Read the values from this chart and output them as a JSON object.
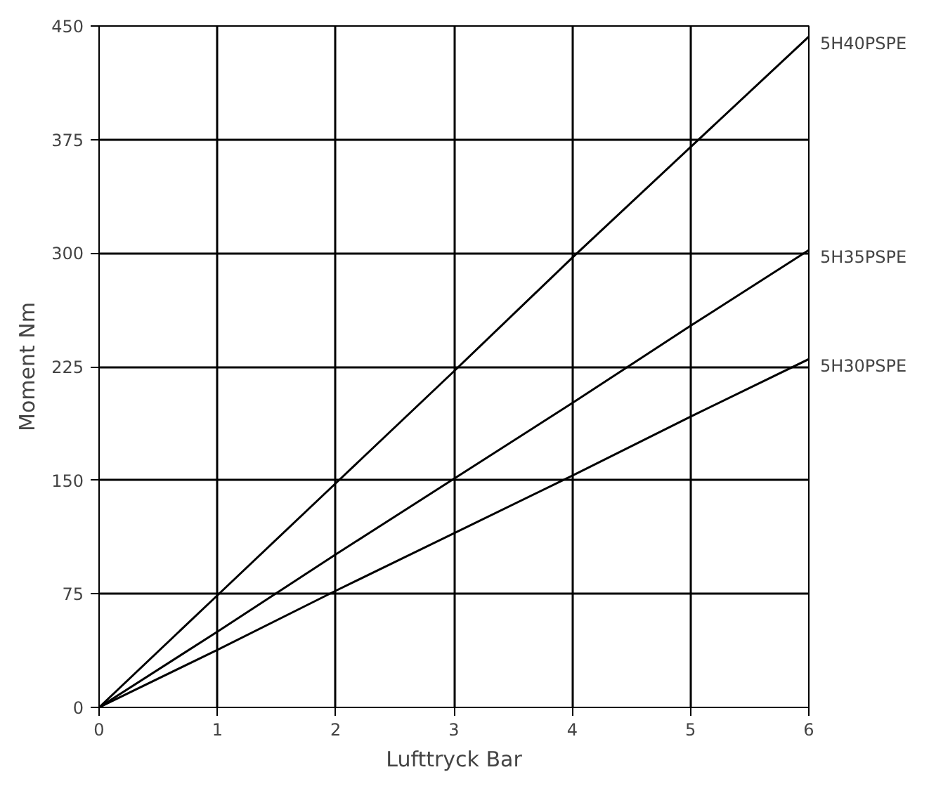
{
  "chart_data": {
    "type": "line",
    "xlabel": "Lufttryck Bar",
    "ylabel": "Moment Nm",
    "x": [
      0,
      1,
      2,
      3,
      4,
      5,
      6
    ],
    "series": [
      {
        "name": "5H40PSPE",
        "color": "#000000",
        "values": [
          0,
          74,
          148,
          222,
          297,
          370,
          443
        ]
      },
      {
        "name": "5H35PSPE",
        "color": "#000000",
        "values": [
          0,
          50,
          101,
          151,
          201,
          252,
          302
        ]
      },
      {
        "name": "5H30PSPE",
        "color": "#000000",
        "values": [
          0,
          38,
          77,
          115,
          153,
          192,
          230
        ]
      }
    ],
    "xlim": [
      0,
      6
    ],
    "ylim": [
      0,
      450
    ],
    "xticks": [
      0,
      1,
      2,
      3,
      4,
      5,
      6
    ],
    "yticks": [
      0,
      75,
      150,
      225,
      300,
      375,
      450
    ],
    "grid": true,
    "marker": "none",
    "line_style": "solid"
  }
}
